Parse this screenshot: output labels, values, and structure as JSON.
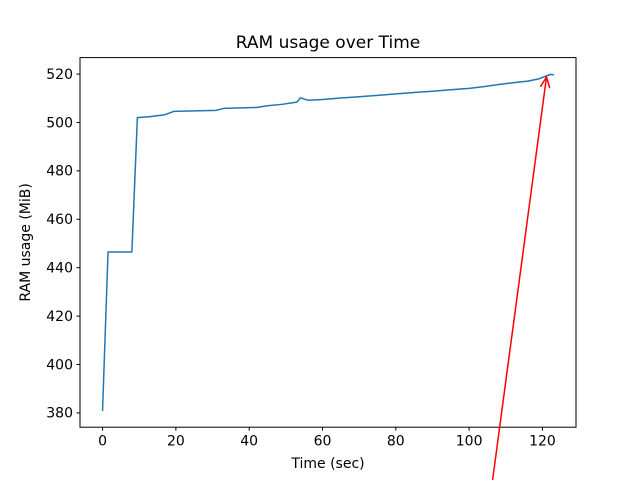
{
  "figure": {
    "background": "#ffffff",
    "plot_bg": "#ffffff",
    "spine_color": "#000000",
    "text_color": "#000000"
  },
  "chart_data": {
    "type": "line",
    "title": "RAM usage over Time",
    "xlabel": "Time (sec)",
    "ylabel": "RAM usage (MiB)",
    "xlim": [
      -6.15,
      129.15
    ],
    "ylim": [
      374.1,
      526.8
    ],
    "xticks": [
      0,
      20,
      40,
      60,
      80,
      100,
      120
    ],
    "yticks": [
      380,
      400,
      420,
      440,
      460,
      480,
      500,
      520
    ],
    "grid": false,
    "legend": "none",
    "series": [
      {
        "name": "RAM usage",
        "color": "#1f77b4",
        "line_width": 1.5,
        "x": [
          0,
          1.5,
          8,
          9.5,
          13,
          17,
          19.5,
          22,
          31,
          33,
          42,
          45,
          49,
          53,
          54,
          56,
          60,
          65,
          70,
          75,
          80,
          85,
          90,
          95,
          100,
          104,
          108,
          112,
          116,
          119,
          121,
          122,
          123
        ],
        "y": [
          381,
          446.5,
          446.5,
          502,
          502.4,
          503.2,
          504.6,
          504.7,
          505,
          505.8,
          506.2,
          506.9,
          507.5,
          508.4,
          510.2,
          509.2,
          509.5,
          510.1,
          510.6,
          511.2,
          511.8,
          512.4,
          512.9,
          513.5,
          514.1,
          514.8,
          515.7,
          516.4,
          517.1,
          518,
          519.2,
          519.8,
          519.7
        ]
      }
    ],
    "annotations": [
      {
        "type": "arrow",
        "color": "#ff0000",
        "line_width": 1.5,
        "tail_xy": [
          106.4,
          352.3
        ],
        "tip_xy": [
          121.1,
          518.8
        ]
      }
    ]
  }
}
